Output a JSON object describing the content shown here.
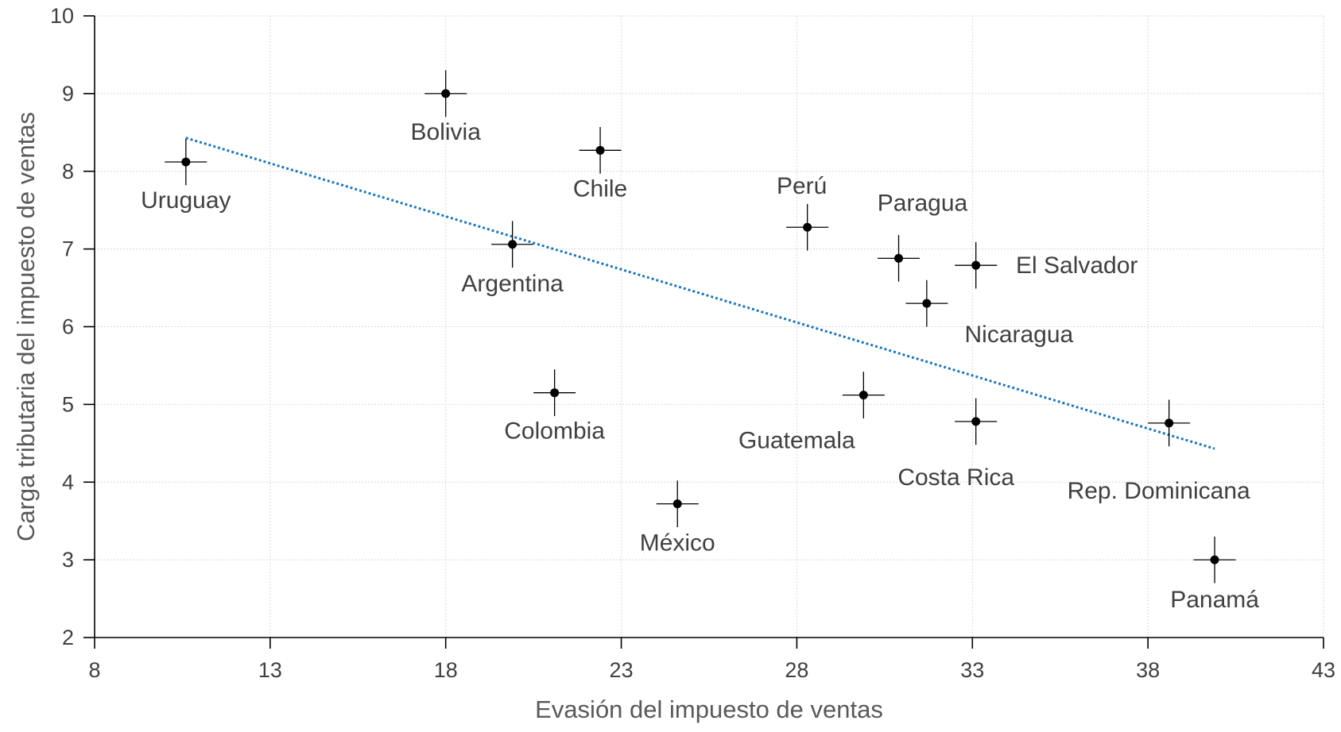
{
  "chart_data": {
    "type": "scatter",
    "xlabel": "Evasión del impuesto de ventas",
    "ylabel": "Carga tributaria del impuesto de ventas",
    "xlim": [
      8,
      43
    ],
    "ylim": [
      2,
      10
    ],
    "xticks": [
      "8",
      "13",
      "18",
      "23",
      "28",
      "33",
      "38",
      "43"
    ],
    "yticks": [
      "2",
      "3",
      "4",
      "5",
      "6",
      "7",
      "8",
      "9",
      "10"
    ],
    "grid": true,
    "trendline": {
      "style": "dotted",
      "color": "#1f77b4",
      "x": [
        10.6,
        39.9
      ],
      "y": [
        8.43,
        4.43
      ]
    },
    "error_bars": {
      "x": 0.6,
      "y": 0.3
    },
    "points": [
      {
        "label": "Uruguay",
        "x": 10.6,
        "y": 8.12
      },
      {
        "label": "Bolivia",
        "x": 18.0,
        "y": 9.0
      },
      {
        "label": "Chile",
        "x": 22.4,
        "y": 8.27
      },
      {
        "label": "Argentina",
        "x": 19.9,
        "y": 7.06
      },
      {
        "label": "Colombia",
        "x": 21.1,
        "y": 5.15
      },
      {
        "label": "México",
        "x": 24.6,
        "y": 3.72
      },
      {
        "label": "Perú",
        "x": 28.3,
        "y": 7.28
      },
      {
        "label": "Paragua",
        "x": 30.9,
        "y": 6.88
      },
      {
        "label": "El Salvador",
        "x": 33.1,
        "y": 6.79
      },
      {
        "label": "Nicaragua",
        "x": 31.7,
        "y": 6.3
      },
      {
        "label": "Guatemala",
        "x": 29.9,
        "y": 5.12
      },
      {
        "label": "Costa Rica",
        "x": 33.1,
        "y": 4.78
      },
      {
        "label": "Rep. Dominicana",
        "x": 38.6,
        "y": 4.76
      },
      {
        "label": "Panamá",
        "x": 39.9,
        "y": 3.0
      }
    ]
  }
}
